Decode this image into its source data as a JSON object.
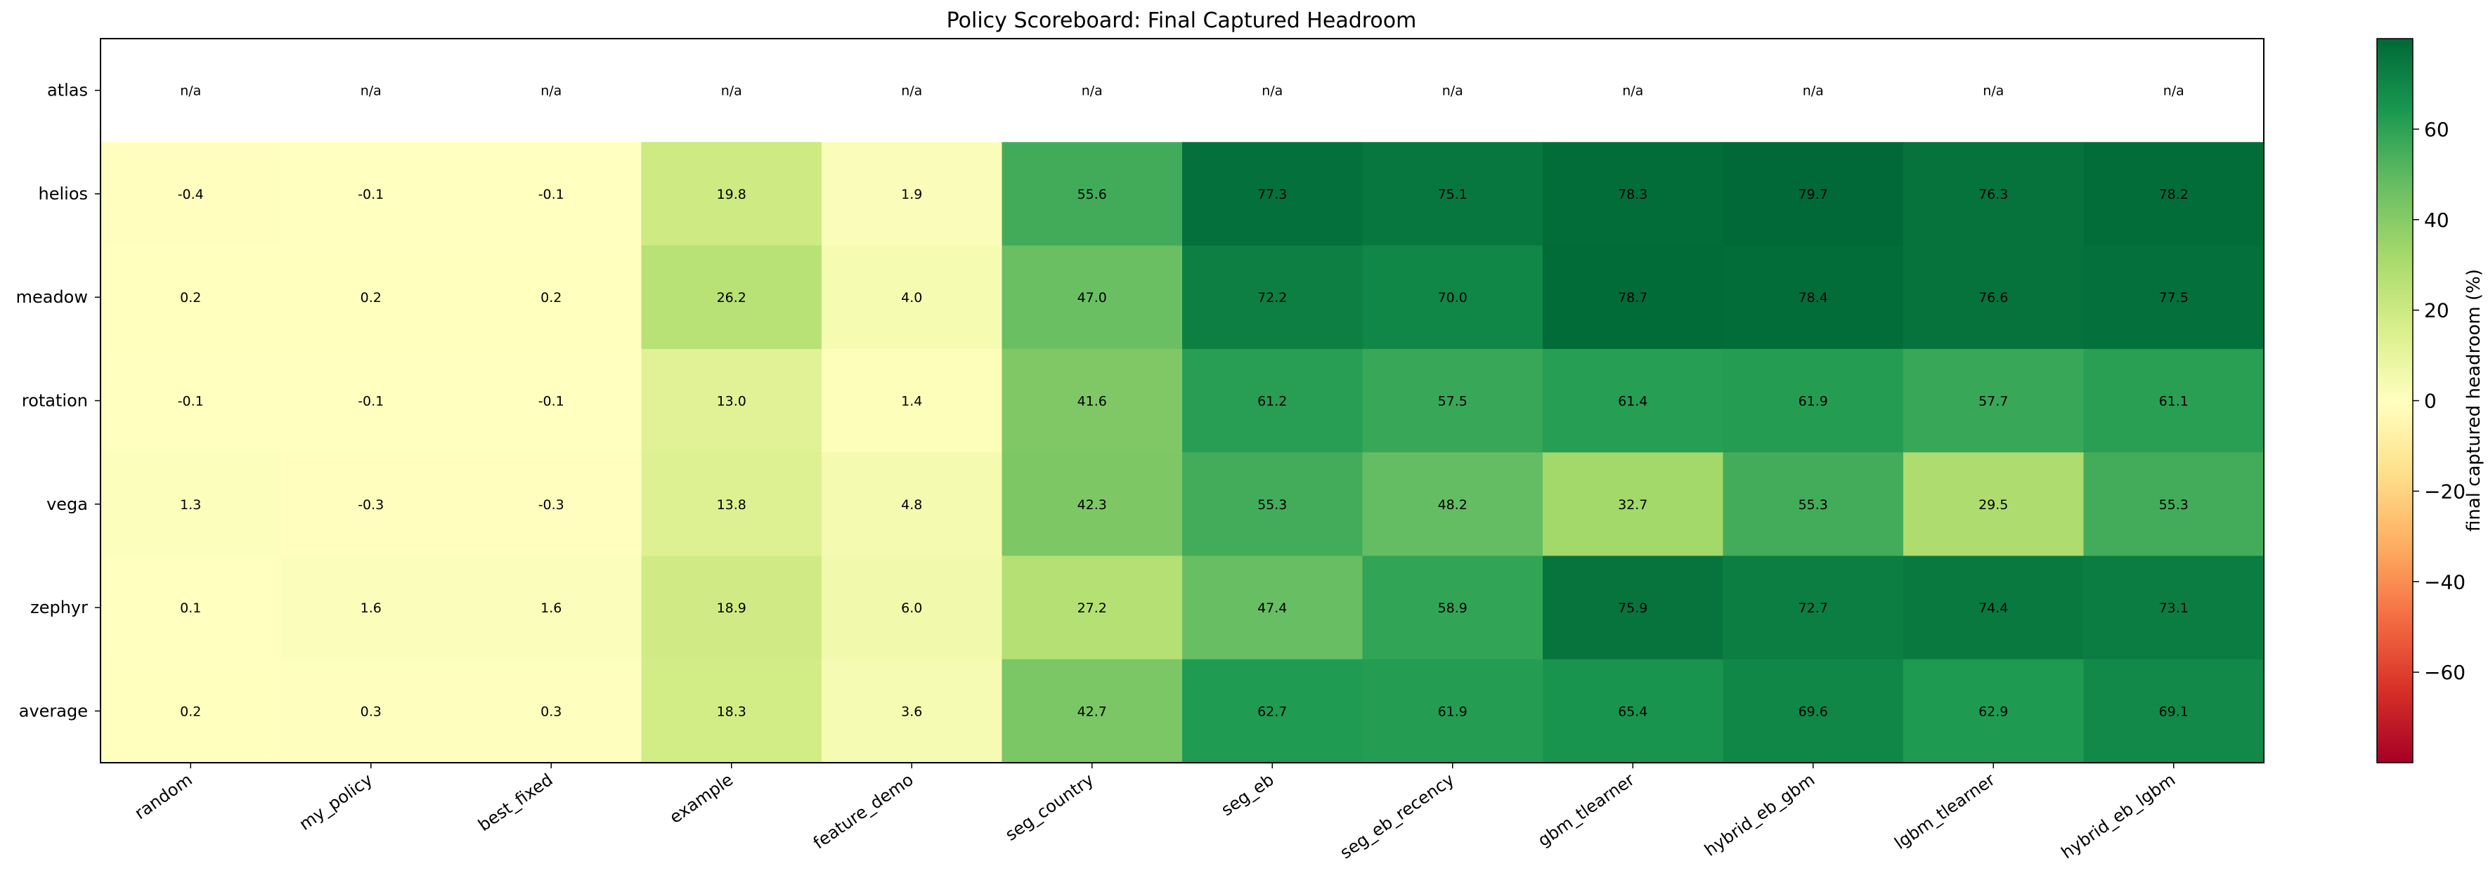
{
  "chart_data": {
    "type": "heatmap",
    "title": "Policy Scoreboard: Final Captured Headroom",
    "rows": [
      "atlas",
      "helios",
      "meadow",
      "rotation",
      "vega",
      "zephyr",
      "average"
    ],
    "columns": [
      "random",
      "my_policy",
      "best_fixed",
      "example",
      "feature_demo",
      "seg_country",
      "seg_eb",
      "seg_eb_recency",
      "gbm_tlearner",
      "hybrid_eb_gbm",
      "lgbm_tlearner",
      "hybrid_eb_lgbm"
    ],
    "values": [
      [
        null,
        null,
        null,
        null,
        null,
        null,
        null,
        null,
        null,
        null,
        null,
        null
      ],
      [
        -0.4,
        -0.1,
        -0.1,
        19.8,
        1.9,
        55.6,
        77.3,
        75.1,
        78.3,
        79.7,
        76.3,
        78.2
      ],
      [
        0.2,
        0.2,
        0.2,
        26.2,
        4.0,
        47.0,
        72.2,
        70.0,
        78.7,
        78.4,
        76.6,
        77.5
      ],
      [
        -0.1,
        -0.1,
        -0.1,
        13.0,
        1.4,
        41.6,
        61.2,
        57.5,
        61.4,
        61.9,
        57.7,
        61.1
      ],
      [
        1.3,
        -0.3,
        -0.3,
        13.8,
        4.8,
        42.3,
        55.3,
        48.2,
        32.7,
        55.3,
        29.5,
        55.3
      ],
      [
        0.1,
        1.6,
        1.6,
        18.9,
        6.0,
        27.2,
        47.4,
        58.9,
        75.9,
        72.7,
        74.4,
        73.1
      ],
      [
        0.2,
        0.3,
        0.3,
        18.3,
        3.6,
        42.7,
        62.7,
        61.9,
        65.4,
        69.6,
        62.9,
        69.1
      ]
    ],
    "missing_label": "n/a",
    "colormap": "RdYlGn",
    "vmin": -80,
    "vmax": 80,
    "colorbar_label": "final captured headroom (%)",
    "colorbar_ticks": [
      -60,
      -40,
      -20,
      0,
      20,
      40,
      60
    ],
    "grid": false
  }
}
